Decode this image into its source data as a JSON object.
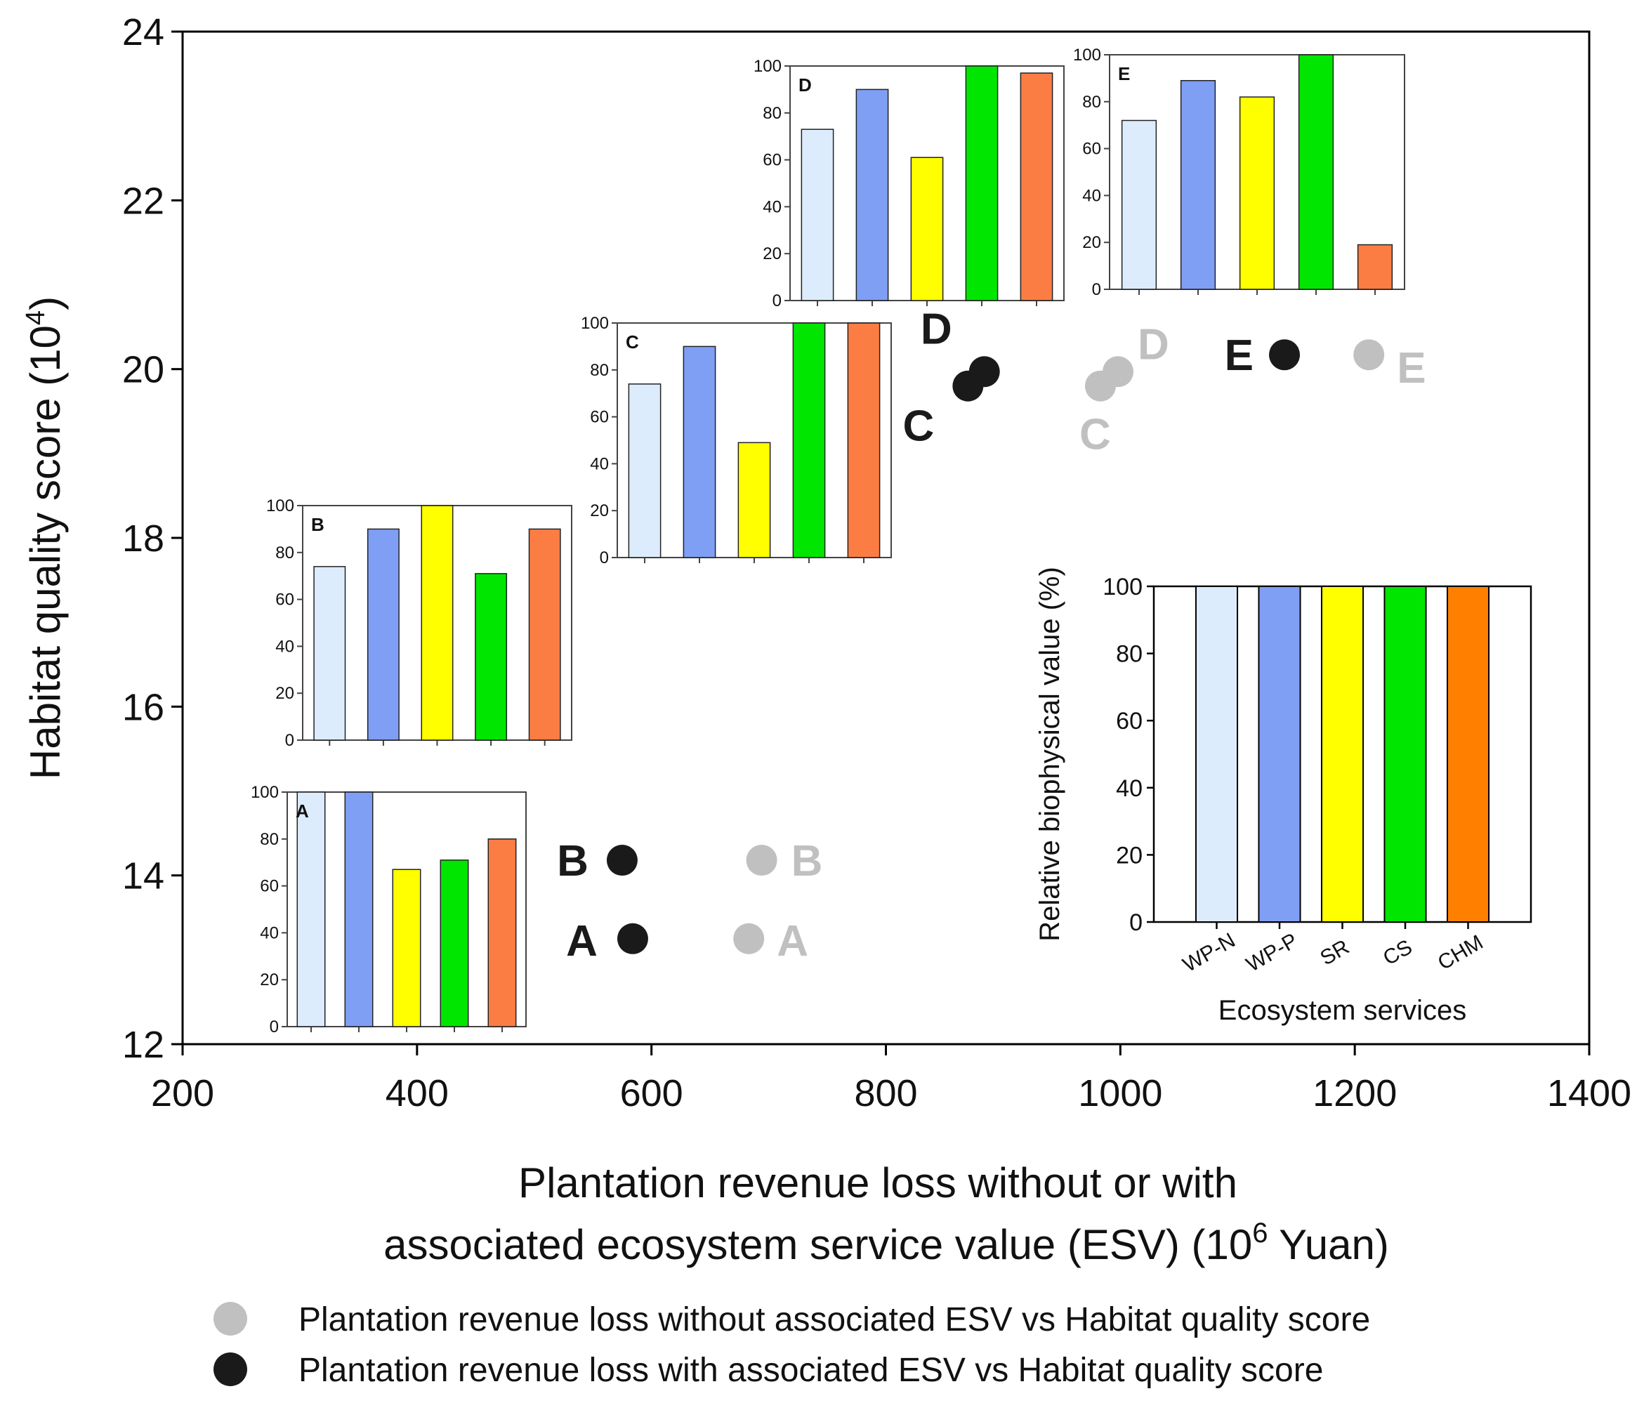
{
  "chart_data": {
    "type": "scatter",
    "x_label_line1": "Plantation revenue loss without or with",
    "x_label_line2_pre": "associated ecosystem service value (ESV) (10",
    "x_label_line2_sup": "6",
    "x_label_line2_post": " Yuan)",
    "y_label_pre": "Habitat quality score (10",
    "y_label_sup": "4",
    "y_label_post": ")",
    "xlim": [
      200,
      1400
    ],
    "ylim": [
      12,
      24
    ],
    "x_ticks": [
      "200",
      "400",
      "600",
      "800",
      "1000",
      "1200",
      "1400"
    ],
    "y_ticks": [
      "12",
      "14",
      "16",
      "18",
      "20",
      "22",
      "24"
    ],
    "series": [
      {
        "name": "Plantation revenue loss without associated ESV vs Habitat quality score",
        "color": "#c0c0c0",
        "points": [
          {
            "label": "A",
            "x": 683,
            "y": 13.25
          },
          {
            "label": "B",
            "x": 694,
            "y": 14.18
          },
          {
            "label": "C",
            "x": 983,
            "y": 19.8
          },
          {
            "label": "D",
            "x": 998,
            "y": 19.97
          },
          {
            "label": "E",
            "x": 1212,
            "y": 20.17
          }
        ]
      },
      {
        "name": "Plantation revenue loss with associated ESV vs Habitat quality score",
        "color": "#1a1a1a",
        "points": [
          {
            "label": "A",
            "x": 584,
            "y": 13.25
          },
          {
            "label": "B",
            "x": 575,
            "y": 14.18
          },
          {
            "label": "C",
            "x": 870,
            "y": 19.8
          },
          {
            "label": "D",
            "x": 884,
            "y": 19.97
          },
          {
            "label": "E",
            "x": 1140,
            "y": 20.17
          }
        ]
      }
    ],
    "legend": [
      {
        "text": "Plantation revenue loss without associated ESV vs Habitat quality score",
        "color": "#c0c0c0"
      },
      {
        "text": "Plantation revenue loss with associated ESV vs Habitat quality score",
        "color": "#1a1a1a"
      }
    ],
    "inset_colors": [
      "#dcecfc",
      "#7f9ff5",
      "#ffff00",
      "#00e600",
      "#fb7d43"
    ],
    "inset_y_ticks": [
      "0",
      "20",
      "40",
      "60",
      "80",
      "100"
    ],
    "insets": [
      {
        "label": "A",
        "values": [
          100,
          100,
          67,
          71,
          80
        ]
      },
      {
        "label": "B",
        "values": [
          74,
          90,
          100,
          71,
          90
        ]
      },
      {
        "label": "C",
        "values": [
          74,
          90,
          49,
          100,
          100
        ]
      },
      {
        "label": "D",
        "values": [
          73,
          90,
          61,
          100,
          97
        ]
      },
      {
        "label": "E",
        "values": [
          72,
          89,
          82,
          100,
          19
        ]
      }
    ],
    "reference_bar": {
      "y_label": "Relative biophysical value (%)",
      "x_label": "Ecosystem services",
      "categories": [
        "WP-N",
        "WP-P",
        "SR",
        "CS",
        "CHM"
      ],
      "values": [
        100,
        100,
        100,
        100,
        100
      ],
      "colors": [
        "#dcecfc",
        "#7f9ff5",
        "#ffff00",
        "#00e600",
        "#ff8000"
      ],
      "ylim": [
        0,
        100
      ],
      "y_ticks": [
        "0",
        "20",
        "40",
        "60",
        "80",
        "100"
      ]
    }
  }
}
